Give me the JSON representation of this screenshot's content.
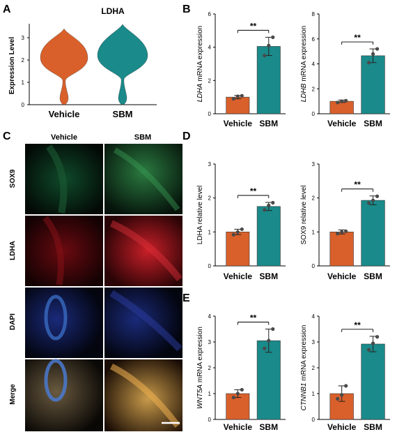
{
  "colors": {
    "vehicle": "#D9602A",
    "sbm": "#1A8A8A",
    "bar_stroke": "#333333",
    "point": "#4a4a4a"
  },
  "panels": {
    "A": {
      "letter": "A"
    },
    "B": {
      "letter": "B"
    },
    "C": {
      "letter": "C",
      "col_vehicle": "Vehicle",
      "col_sbm": "SBM",
      "rows": [
        "SOX9",
        "LDHA",
        "DAPI",
        "Merge"
      ]
    },
    "D": {
      "letter": "D"
    },
    "E": {
      "letter": "E"
    }
  },
  "chart_data": [
    {
      "id": "A",
      "type": "violin",
      "title": "LDHA",
      "ylabel": "Expression Level",
      "categories": [
        "Vehicle",
        "SBM"
      ],
      "ylim": [
        0,
        3.5
      ],
      "yticks": [
        "0",
        "1",
        "2",
        "3"
      ],
      "series": [
        {
          "category": "Vehicle",
          "min": 0.0,
          "max": 3.4,
          "modes": [
            0.3,
            2.1
          ]
        },
        {
          "category": "SBM",
          "min": 0.0,
          "max": 3.6,
          "modes": [
            0.3,
            2.2
          ]
        }
      ]
    },
    {
      "id": "B1",
      "type": "bar",
      "ylabel_italic": "LDHA",
      "ylabel_rest": " mRNA expression",
      "categories": [
        "Vehicle",
        "SBM"
      ],
      "values": [
        1.0,
        4.05
      ],
      "errors": [
        0.1,
        0.55
      ],
      "points": [
        [
          0.9,
          1.05,
          1.08
        ],
        [
          3.5,
          4.1,
          4.6
        ]
      ],
      "ylim": [
        0,
        6
      ],
      "yticks": [
        "0",
        "2",
        "4",
        "6"
      ],
      "significance": "**"
    },
    {
      "id": "B2",
      "type": "bar",
      "ylabel_italic": "LDHB",
      "ylabel_rest": " mRNA expression",
      "categories": [
        "Vehicle",
        "SBM"
      ],
      "values": [
        1.0,
        4.65
      ],
      "errors": [
        0.1,
        0.55
      ],
      "points": [
        [
          0.9,
          1.0,
          1.05
        ],
        [
          4.1,
          4.8,
          5.2
        ]
      ],
      "ylim": [
        0,
        8
      ],
      "yticks": [
        "0",
        "2",
        "4",
        "6",
        "8"
      ],
      "significance": "**"
    },
    {
      "id": "D1",
      "type": "bar",
      "ylabel_italic": "",
      "ylabel_rest": "LDHA relative level",
      "categories": [
        "Vehicle",
        "SBM"
      ],
      "values": [
        1.0,
        1.75
      ],
      "errors": [
        0.08,
        0.12
      ],
      "points": [
        [
          0.92,
          1.0,
          1.08
        ],
        [
          1.65,
          1.78,
          1.86
        ]
      ],
      "ylim": [
        0,
        3
      ],
      "yticks": [
        "0",
        "1",
        "2",
        "3"
      ],
      "significance": "**"
    },
    {
      "id": "D2",
      "type": "bar",
      "ylabel_italic": "",
      "ylabel_rest": "SOX9 relative level",
      "categories": [
        "Vehicle",
        "SBM"
      ],
      "values": [
        1.0,
        1.93
      ],
      "errors": [
        0.06,
        0.13
      ],
      "points": [
        [
          0.95,
          1.0,
          1.02
        ],
        [
          1.85,
          1.93,
          2.05
        ]
      ],
      "ylim": [
        0,
        3
      ],
      "yticks": [
        "0",
        "1",
        "2",
        "3"
      ],
      "significance": "**"
    },
    {
      "id": "E1",
      "type": "bar",
      "ylabel_italic": "WNT5A",
      "ylabel_rest": " mRNA expression",
      "categories": [
        "Vehicle",
        "SBM"
      ],
      "values": [
        1.0,
        3.05
      ],
      "errors": [
        0.15,
        0.45
      ],
      "points": [
        [
          0.85,
          1.0,
          1.15
        ],
        [
          2.75,
          3.05,
          3.5
        ]
      ],
      "ylim": [
        0,
        4
      ],
      "yticks": [
        "0",
        "1",
        "2",
        "3",
        "4"
      ],
      "significance": "**"
    },
    {
      "id": "E2",
      "type": "bar",
      "ylabel_italic": "CTNNB1",
      "ylabel_rest": " mRNA expression",
      "categories": [
        "Vehicle",
        "SBM"
      ],
      "values": [
        1.0,
        2.92
      ],
      "errors": [
        0.3,
        0.3
      ],
      "points": [
        [
          0.8,
          0.95,
          1.3
        ],
        [
          2.7,
          2.95,
          3.2
        ]
      ],
      "ylim": [
        0,
        4
      ],
      "yticks": [
        "0",
        "1",
        "2",
        "3",
        "4"
      ],
      "significance": "**"
    }
  ]
}
